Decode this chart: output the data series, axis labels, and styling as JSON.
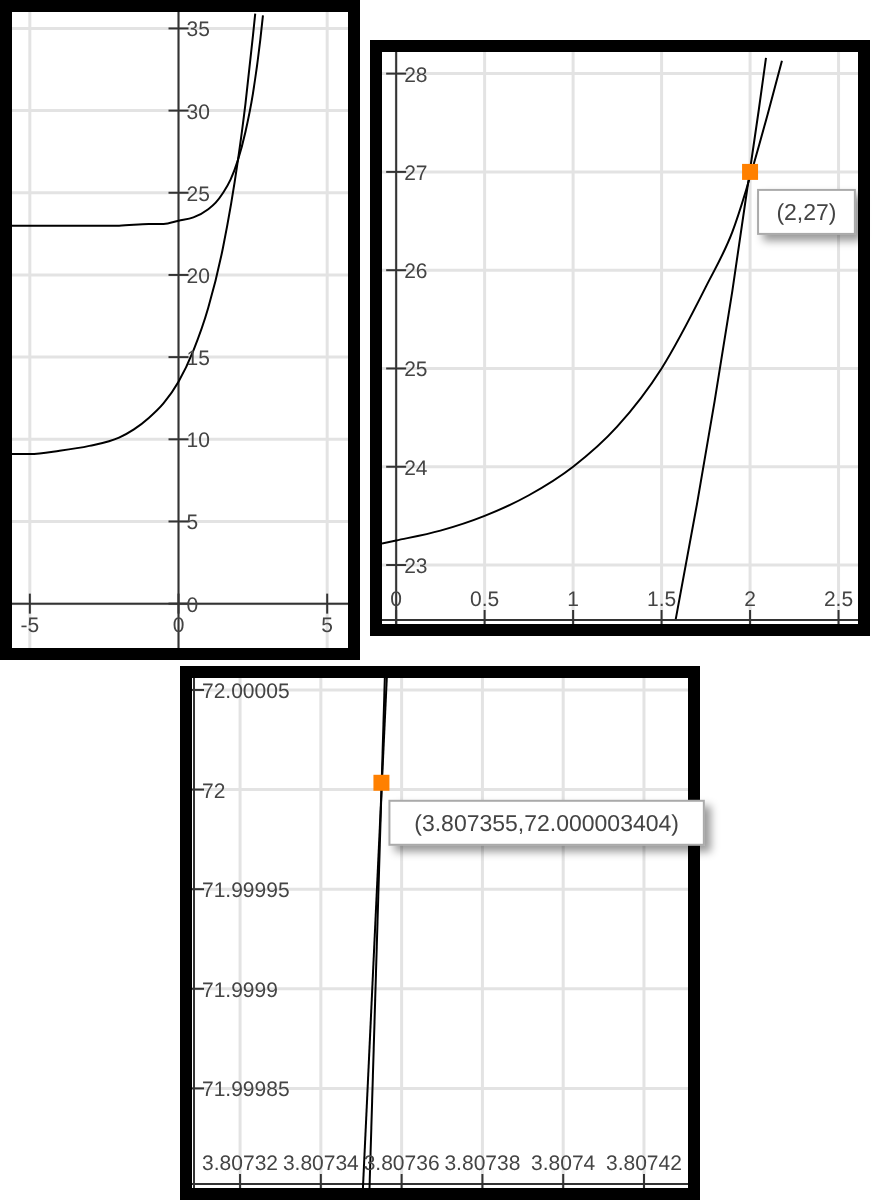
{
  "chart_data": [
    {
      "type": "line",
      "xlim": [
        -5.6,
        5.7
      ],
      "ylim": [
        -2.7,
        36
      ],
      "xticks": [
        -5,
        0,
        5
      ],
      "yticks": [
        0,
        5,
        10,
        15,
        20,
        25,
        30,
        35
      ],
      "grid": true,
      "series": [
        {
          "color": "#000000",
          "x": [
            -5.6,
            -4,
            -3,
            -2,
            -1,
            -0.5,
            0,
            0.5,
            1,
            1.25,
            1.5,
            1.75,
            2,
            2.25,
            2.5,
            2.75,
            2.84
          ],
          "values": [
            23,
            23,
            23,
            23,
            23.1,
            23.1,
            23.3,
            23.5,
            24,
            24.4,
            25,
            25.8,
            27,
            28.7,
            31,
            34.3,
            35.8
          ]
        },
        {
          "color": "#000000",
          "x": [
            -5.6,
            -5,
            -4,
            -3,
            -2,
            -1.5,
            -1,
            -0.5,
            0,
            0.5,
            1,
            1.5,
            2,
            2.25,
            2.5,
            2.58
          ],
          "values": [
            9.1,
            9.1,
            9.3,
            9.6,
            10.1,
            10.6,
            11.3,
            12.2,
            13.5,
            15.4,
            18,
            21.7,
            27,
            30.4,
            34.5,
            35.9
          ]
        }
      ]
    },
    {
      "type": "line",
      "xlim": [
        -0.08,
        2.61
      ],
      "ylim": [
        22.4,
        28.22
      ],
      "xticks": [
        0,
        0.5,
        1,
        1.5,
        2,
        2.5
      ],
      "yticks": [
        23,
        24,
        25,
        26,
        27,
        28
      ],
      "grid": true,
      "annotations": [
        {
          "text": "(2,27)",
          "x": 2,
          "y": 27
        }
      ],
      "series": [
        {
          "color": "#000000",
          "x": [
            -0.08,
            0,
            0.25,
            0.5,
            0.75,
            1,
            1.25,
            1.5,
            1.75,
            1.9,
            2.1,
            2.18
          ],
          "values": [
            23.22,
            23.25,
            23.35,
            23.5,
            23.71,
            24,
            24.41,
            25,
            25.83,
            26.39,
            27.59,
            28.13
          ]
        },
        {
          "color": "#000000",
          "x": [
            1.58,
            1.7,
            1.8,
            1.9,
            2.05,
            2.09
          ],
          "values": [
            22.45,
            23.62,
            24.67,
            25.79,
            27.64,
            28.16
          ]
        },
        {
          "type": "scatter",
          "marker": "square",
          "color": "#ff8000",
          "x": [
            2
          ],
          "values": [
            27
          ]
        }
      ]
    },
    {
      "type": "line",
      "xlim": [
        3.8073081,
        3.8074309
      ],
      "ylim": [
        71.9998,
        72.000056
      ],
      "xticks": [
        3.80732,
        3.80734,
        3.80736,
        3.80738,
        3.8074,
        3.80742
      ],
      "yticks": [
        71.99985,
        71.9999,
        71.99995,
        72,
        72.00005
      ],
      "grid": true,
      "annotations": [
        {
          "text": "(3.807355,72.000003404)",
          "x": 3.807355,
          "y": 72.000003404
        }
      ],
      "series": [
        {
          "color": "#000000",
          "x": [
            3.80735205,
            3.80735584
          ],
          "values": [
            71.9998,
            72.000056
          ]
        },
        {
          "color": "#000000",
          "x": [
            3.80735042,
            3.80735633
          ],
          "values": [
            71.9998,
            72.000056
          ]
        },
        {
          "type": "scatter",
          "marker": "square",
          "color": "#ff8000",
          "x": [
            3.807355
          ],
          "values": [
            72.000003404
          ]
        }
      ]
    }
  ]
}
